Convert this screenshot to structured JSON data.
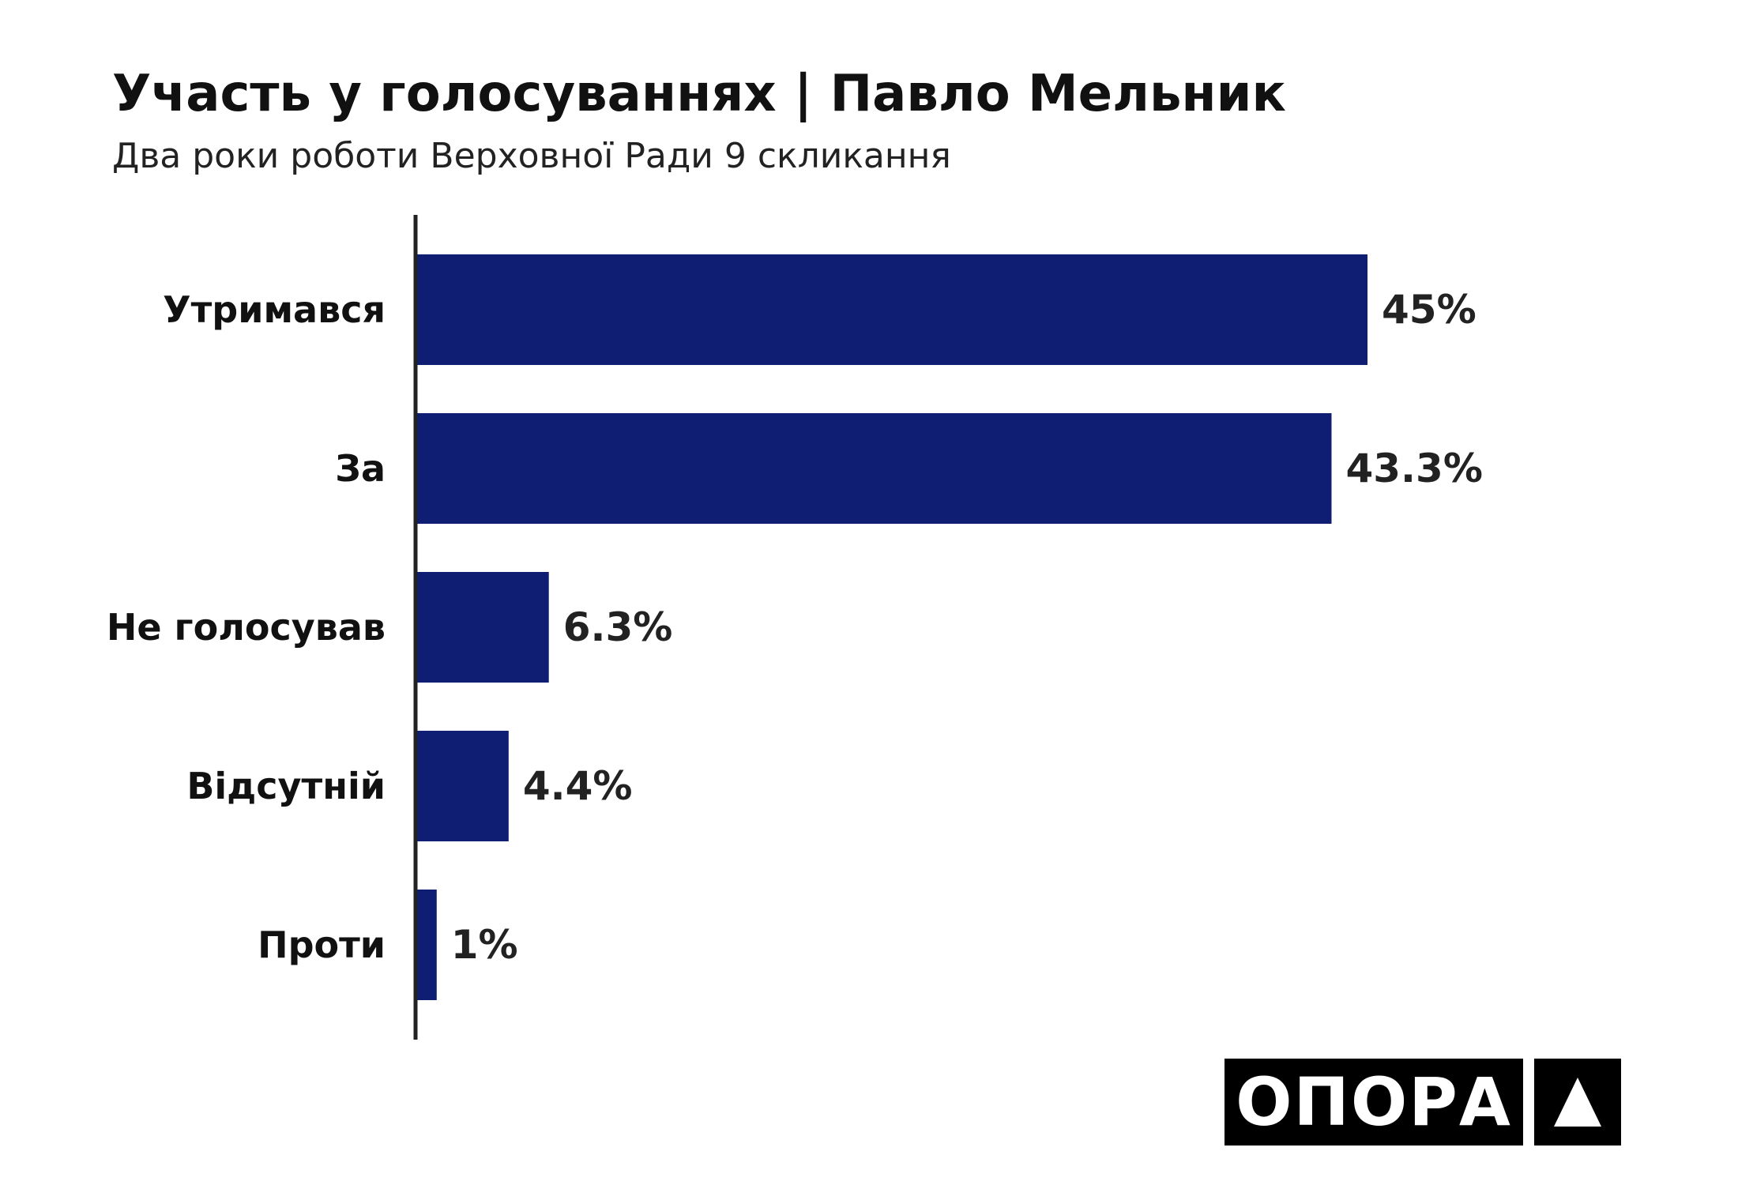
{
  "header": {
    "title": "Участь у голосуваннях | Павло Мельник",
    "subtitle": "Два роки роботи Верховної Ради 9 скликання"
  },
  "chart_data": {
    "type": "bar",
    "orientation": "horizontal",
    "categories": [
      "Утримався",
      "За",
      "Не голосував",
      "Відсутній",
      "Проти"
    ],
    "values": [
      45,
      43.3,
      6.3,
      4.4,
      1
    ],
    "value_labels": [
      "45%",
      "43.3%",
      "6.3%",
      "4.4%",
      "1%"
    ],
    "bar_color": "#0f1d72",
    "grid": false,
    "legend": "none"
  },
  "logo": {
    "text": "ОПОРА",
    "icon": "triangle-up-icon"
  }
}
